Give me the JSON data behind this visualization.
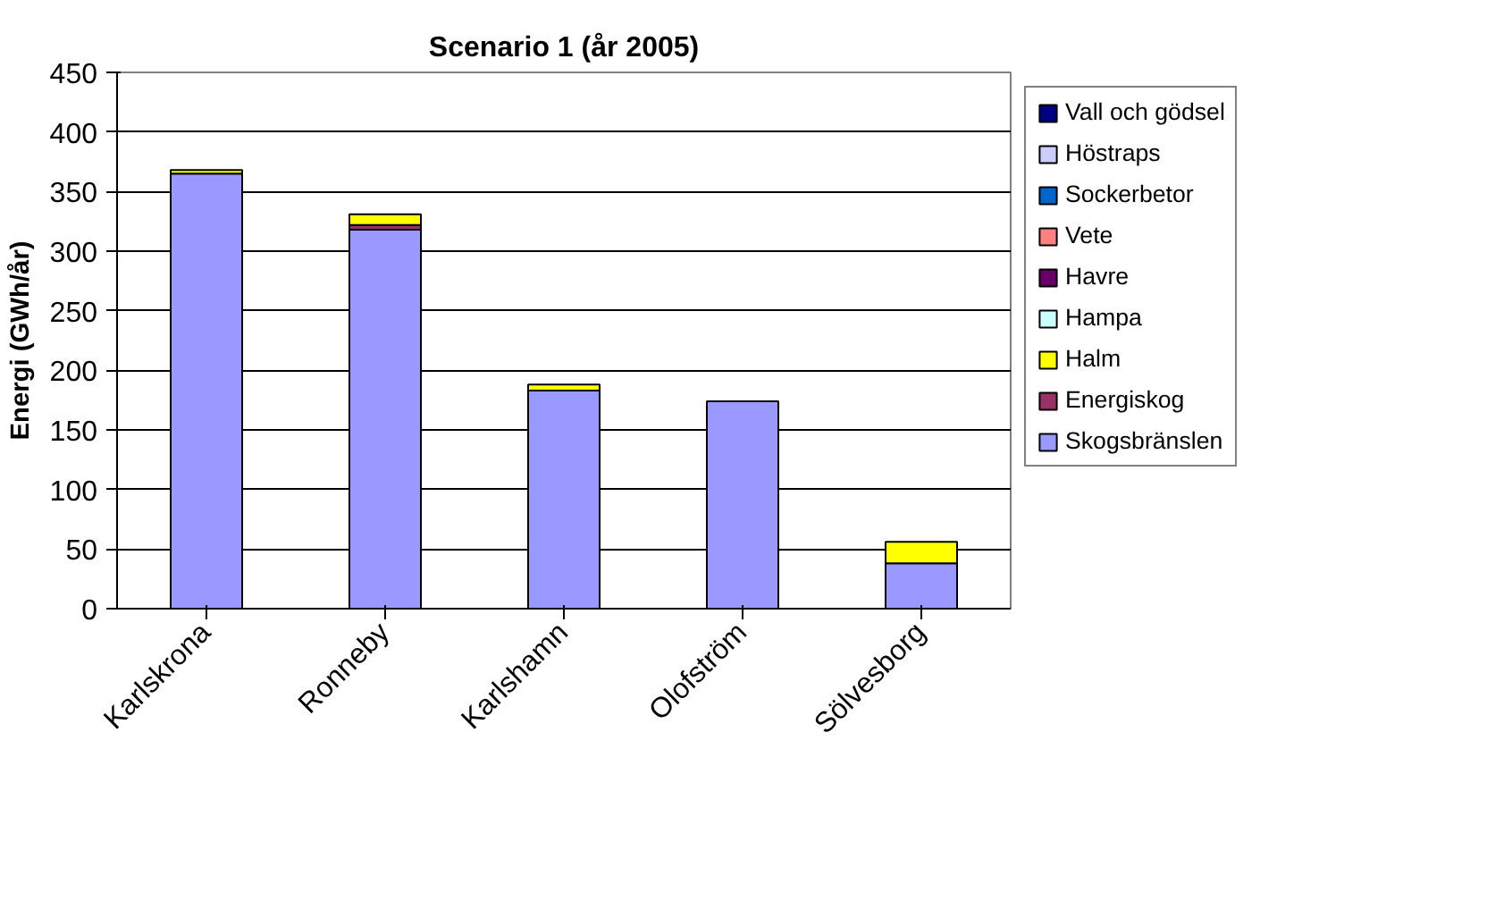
{
  "chart_data": {
    "type": "bar",
    "title": "Scenario 1 (år 2005)",
    "ylabel": "Energi (GWh/år)",
    "categories": [
      "Karlskrona",
      "Ronneby",
      "Karlshamn",
      "Olofström",
      "Sölvesborg"
    ],
    "stacked": true,
    "ylim": [
      0,
      450
    ],
    "yticks": [
      0,
      50,
      100,
      150,
      200,
      250,
      300,
      350,
      400,
      450
    ],
    "grid": "y",
    "legend": "right",
    "series": [
      {
        "name": "Skogsbränslen",
        "color": "#9999ff",
        "values": [
          365,
          318,
          183,
          174,
          38
        ]
      },
      {
        "name": "Energiskog",
        "color": "#993366",
        "values": [
          0,
          4,
          0,
          0,
          0
        ]
      },
      {
        "name": "Halm",
        "color": "#ffff00",
        "values": [
          3,
          9,
          5,
          0,
          18
        ]
      },
      {
        "name": "Hampa",
        "color": "#ccffff",
        "values": [
          0,
          0,
          0,
          0,
          0
        ]
      },
      {
        "name": "Havre",
        "color": "#660066",
        "values": [
          0,
          0,
          0,
          0,
          0
        ]
      },
      {
        "name": "Vete",
        "color": "#ff8080",
        "values": [
          0,
          0,
          0,
          0,
          0
        ]
      },
      {
        "name": "Sockerbetor",
        "color": "#0066cc",
        "values": [
          0,
          0,
          0,
          0,
          0
        ]
      },
      {
        "name": "Höstraps",
        "color": "#ccccff",
        "values": [
          0,
          0,
          0,
          0,
          0
        ]
      },
      {
        "name": "Vall och gödsel",
        "color": "#000080",
        "values": [
          0,
          0,
          0,
          0,
          0
        ]
      }
    ]
  }
}
